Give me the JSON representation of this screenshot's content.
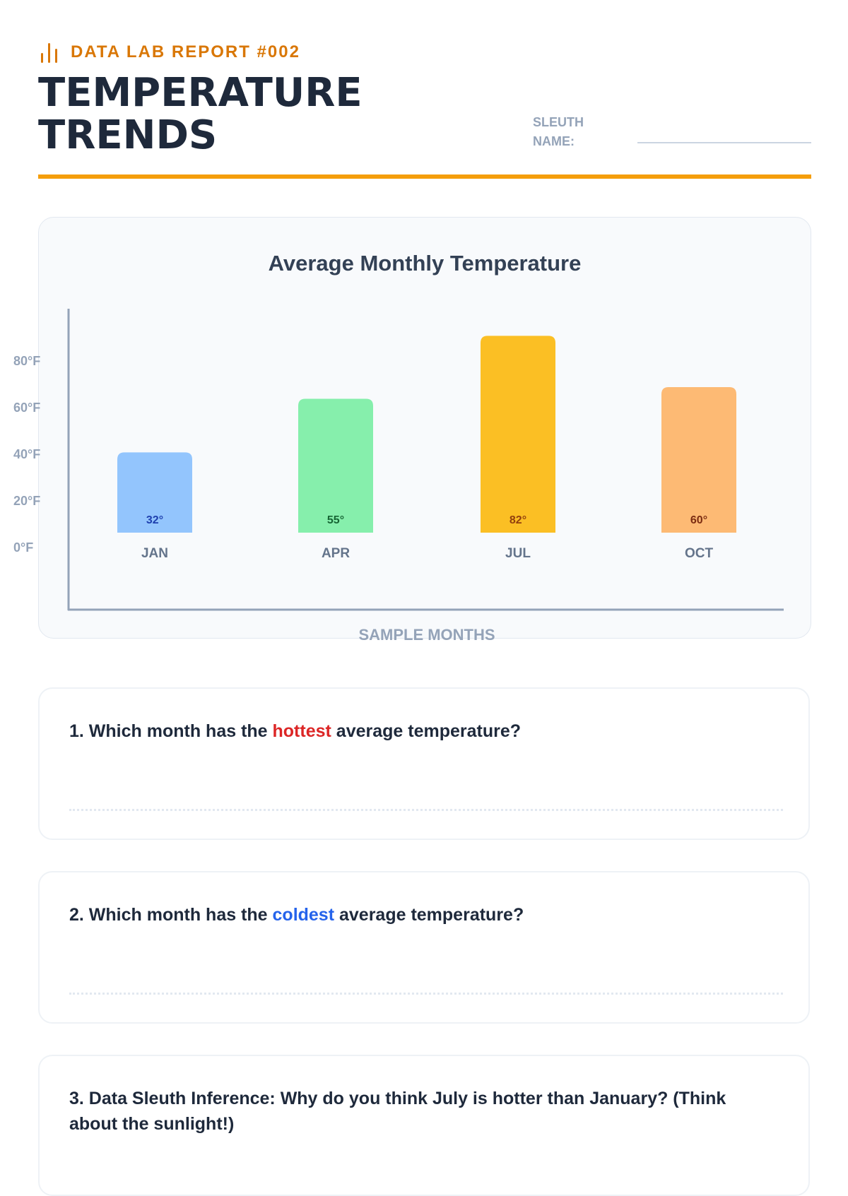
{
  "header": {
    "report_label": "DATA LAB REPORT #002",
    "title_line1": "TEMPERATURE",
    "title_line2": "TRENDS",
    "sleuth_label_1": "SLEUTH",
    "sleuth_label_2": "NAME:",
    "icon": "bar-chart-icon",
    "accent_color": "#d97706",
    "rule_color": "#f59e0b"
  },
  "chart_data": {
    "type": "bar",
    "title": "Average Monthly Temperature",
    "xlabel": "SAMPLE MONTHS",
    "ylabel": "",
    "categories": [
      "JAN",
      "APR",
      "JUL",
      "OCT"
    ],
    "values": [
      32,
      55,
      82,
      60
    ],
    "value_labels": [
      "32°",
      "55°",
      "82°",
      "60°"
    ],
    "y_ticks": [
      "0°F",
      "20°F",
      "40°F",
      "60°F",
      "80°F"
    ],
    "y_tick_values": [
      0,
      20,
      40,
      60,
      80
    ],
    "ylim": [
      0,
      80
    ],
    "grid": false,
    "legend": "none",
    "bar_colors": [
      "#93c5fd",
      "#86efac",
      "#fbbf24",
      "#fdba74"
    ],
    "label_colors": [
      "#1e40af",
      "#166534",
      "#92400e",
      "#7c2d12"
    ]
  },
  "questions": {
    "q1": {
      "prefix": "1. Which month has the ",
      "highlight": "hottest",
      "suffix": " average temperature?",
      "highlight_color": "#dc2626"
    },
    "q2": {
      "prefix": "2. Which month has the ",
      "highlight": "coldest",
      "suffix": " average temperature?",
      "highlight_color": "#2563eb"
    },
    "q3": {
      "text": "3. Data Sleuth Inference: Why do you think July is hotter than January? (Think about the sunlight!)"
    }
  }
}
